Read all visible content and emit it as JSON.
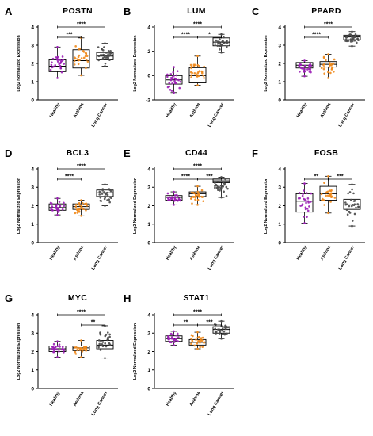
{
  "figure": {
    "ylabel": "Log2 Normalized Expression",
    "groups": [
      "Healthy",
      "Asthma",
      "Lung Cancer"
    ],
    "group_colors": [
      "#9b1fb5",
      "#f08a1c",
      "#4a4a4a"
    ]
  },
  "chart_data": [
    {
      "type": "box",
      "panel": "A",
      "title": "POSTN",
      "ylim": [
        0,
        4
      ],
      "yticks": [
        0,
        1,
        2,
        3,
        4
      ],
      "categories": [
        "Healthy",
        "Asthma",
        "Lung Cancer"
      ],
      "boxes": [
        {
          "min": 1.2,
          "q1": 1.55,
          "median": 1.85,
          "q3": 2.2,
          "max": 2.9
        },
        {
          "min": 1.35,
          "q1": 1.75,
          "median": 2.15,
          "q3": 2.75,
          "max": 3.4
        },
        {
          "min": 1.85,
          "q1": 2.2,
          "median": 2.4,
          "q3": 2.6,
          "max": 3.1
        }
      ],
      "significance": [
        {
          "from": 0,
          "to": 1,
          "label": "***"
        },
        {
          "from": 0,
          "to": 2,
          "label": "****"
        }
      ]
    },
    {
      "type": "box",
      "panel": "B",
      "title": "LUM",
      "ylim": [
        -2,
        4
      ],
      "yticks": [
        -2,
        0,
        2,
        4
      ],
      "categories": [
        "Healthy",
        "Asthma",
        "Lung Cancer"
      ],
      "boxes": [
        {
          "min": -1.4,
          "q1": -0.7,
          "median": -0.35,
          "q3": 0.0,
          "max": 0.7
        },
        {
          "min": -0.8,
          "q1": -0.6,
          "median": 0.0,
          "q3": 0.65,
          "max": 1.6
        },
        {
          "min": 1.9,
          "q1": 2.45,
          "median": 2.75,
          "q3": 3.1,
          "max": 3.4
        }
      ],
      "significance": [
        {
          "from": 0,
          "to": 1,
          "label": "****"
        },
        {
          "from": 1,
          "to": 2,
          "label": "*"
        },
        {
          "from": 0,
          "to": 2,
          "label": "****"
        }
      ]
    },
    {
      "type": "box",
      "panel": "C",
      "title": "PPARD",
      "ylim": [
        0,
        4
      ],
      "yticks": [
        0,
        1,
        2,
        3,
        4
      ],
      "categories": [
        "Healthy",
        "Asthma",
        "Lung Cancer"
      ],
      "boxes": [
        {
          "min": 1.3,
          "q1": 1.75,
          "median": 1.9,
          "q3": 2.05,
          "max": 2.15
        },
        {
          "min": 1.2,
          "q1": 1.8,
          "median": 1.95,
          "q3": 2.1,
          "max": 2.5
        },
        {
          "min": 2.95,
          "q1": 3.3,
          "median": 3.45,
          "q3": 3.55,
          "max": 3.75
        }
      ],
      "significance": [
        {
          "from": 0,
          "to": 1,
          "label": "****"
        },
        {
          "from": 0,
          "to": 2,
          "label": "****"
        }
      ]
    },
    {
      "type": "box",
      "panel": "D",
      "title": "BCL3",
      "ylim": [
        0,
        4
      ],
      "yticks": [
        0,
        1,
        2,
        3,
        4
      ],
      "categories": [
        "Healthy",
        "Asthma",
        "Lung Cancer"
      ],
      "boxes": [
        {
          "min": 1.5,
          "q1": 1.75,
          "median": 1.9,
          "q3": 2.1,
          "max": 2.4
        },
        {
          "min": 1.45,
          "q1": 1.8,
          "median": 1.95,
          "q3": 2.1,
          "max": 2.3
        },
        {
          "min": 2.0,
          "q1": 2.5,
          "median": 2.7,
          "q3": 2.85,
          "max": 3.15
        }
      ],
      "significance": [
        {
          "from": 0,
          "to": 1,
          "label": "****"
        },
        {
          "from": 0,
          "to": 2,
          "label": "****"
        }
      ]
    },
    {
      "type": "box",
      "panel": "E",
      "title": "CD44",
      "ylim": [
        0,
        4
      ],
      "yticks": [
        0,
        1,
        2,
        3,
        4
      ],
      "categories": [
        "Healthy",
        "Asthma",
        "Lung Cancer"
      ],
      "boxes": [
        {
          "min": 2.05,
          "q1": 2.3,
          "median": 2.45,
          "q3": 2.55,
          "max": 2.75
        },
        {
          "min": 2.05,
          "q1": 2.5,
          "median": 2.65,
          "q3": 2.75,
          "max": 3.05
        },
        {
          "min": 2.45,
          "q1": 3.25,
          "median": 3.35,
          "q3": 3.45,
          "max": 3.55
        }
      ],
      "significance": [
        {
          "from": 0,
          "to": 1,
          "label": "****"
        },
        {
          "from": 1,
          "to": 2,
          "label": "***"
        },
        {
          "from": 0,
          "to": 2,
          "label": "****"
        }
      ]
    },
    {
      "type": "box",
      "panel": "F",
      "title": "FOSB",
      "ylim": [
        0,
        4
      ],
      "yticks": [
        0,
        1,
        2,
        3,
        4
      ],
      "categories": [
        "Healthy",
        "Asthma",
        "Lung Cancer"
      ],
      "boxes": [
        {
          "min": 1.05,
          "q1": 1.65,
          "median": 2.25,
          "q3": 2.65,
          "max": 3.2
        },
        {
          "min": 1.6,
          "q1": 2.3,
          "median": 2.65,
          "q3": 3.05,
          "max": 3.6
        },
        {
          "min": 0.9,
          "q1": 1.8,
          "median": 2.05,
          "q3": 2.35,
          "max": 3.15
        }
      ],
      "significance": [
        {
          "from": 0,
          "to": 1,
          "label": "**"
        },
        {
          "from": 1,
          "to": 2,
          "label": "***"
        }
      ]
    },
    {
      "type": "box",
      "panel": "G",
      "title": "MYC",
      "ylim": [
        0,
        4
      ],
      "yticks": [
        0,
        1,
        2,
        3,
        4
      ],
      "categories": [
        "Healthy",
        "Asthma",
        "Lung Cancer"
      ],
      "boxes": [
        {
          "min": 1.7,
          "q1": 2.0,
          "median": 2.15,
          "q3": 2.3,
          "max": 2.55
        },
        {
          "min": 1.7,
          "q1": 2.05,
          "median": 2.2,
          "q3": 2.3,
          "max": 2.6
        },
        {
          "min": 1.65,
          "q1": 2.15,
          "median": 2.35,
          "q3": 2.6,
          "max": 3.4
        }
      ],
      "significance": [
        {
          "from": 1,
          "to": 2,
          "label": "**"
        },
        {
          "from": 0,
          "to": 2,
          "label": "****"
        }
      ]
    },
    {
      "type": "box",
      "panel": "H",
      "title": "STAT1",
      "ylim": [
        0,
        4
      ],
      "yticks": [
        0,
        1,
        2,
        3,
        4
      ],
      "categories": [
        "Healthy",
        "Asthma",
        "Lung Cancer"
      ],
      "boxes": [
        {
          "min": 2.35,
          "q1": 2.55,
          "median": 2.7,
          "q3": 2.85,
          "max": 3.1
        },
        {
          "min": 2.15,
          "q1": 2.35,
          "median": 2.5,
          "q3": 2.65,
          "max": 3.05
        },
        {
          "min": 2.7,
          "q1": 3.0,
          "median": 3.2,
          "q3": 3.35,
          "max": 3.65
        }
      ],
      "significance": [
        {
          "from": 0,
          "to": 1,
          "label": "**"
        },
        {
          "from": 1,
          "to": 2,
          "label": "***"
        },
        {
          "from": 0,
          "to": 2,
          "label": "****"
        }
      ]
    }
  ]
}
